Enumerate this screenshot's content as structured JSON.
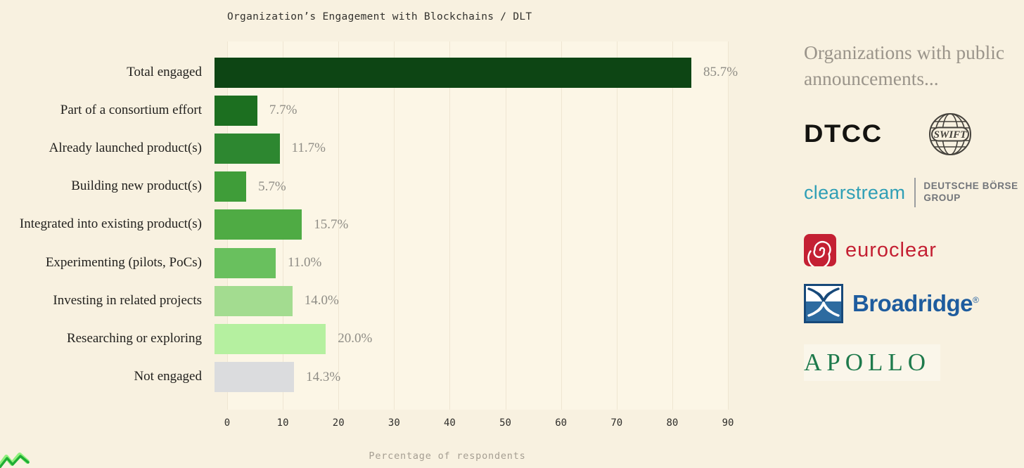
{
  "chart_data": {
    "type": "bar",
    "orientation": "horizontal",
    "title": "Organization’s Engagement with Blockchains / DLT",
    "xlabel": "Percentage of respondents",
    "xlim": [
      0,
      90
    ],
    "xticks": [
      0,
      10,
      20,
      30,
      40,
      50,
      60,
      70,
      80,
      90
    ],
    "grid": "vertical",
    "categories": [
      "Total engaged",
      "Part of a consortium effort",
      "Already launched product(s)",
      "Building new product(s)",
      "Integrated into existing product(s)",
      "Experimenting (pilots, PoCs)",
      "Investing in related projects",
      "Researching or exploring",
      "Not engaged"
    ],
    "values": [
      85.7,
      7.7,
      11.7,
      5.7,
      15.7,
      11.0,
      14.0,
      20.0,
      14.3
    ],
    "value_labels": [
      "85.7%",
      "7.7%",
      "11.7%",
      "5.7%",
      "15.7%",
      "11.0%",
      "14.0%",
      "20.0%",
      "14.3%"
    ],
    "bar_colors": [
      "#0d4514",
      "#1c6f20",
      "#2d8730",
      "#3f9d39",
      "#4fab44",
      "#69c05e",
      "#a3dc90",
      "#b5f0a0",
      "#dbdcde"
    ]
  },
  "sidebar": {
    "heading": "Organizations with public announcements...",
    "dtcc": "DTCC",
    "swift": "SWIFT",
    "clearstream": "clearstream",
    "deutsche_boerse_line1": "DEUTSCHE BÖRSE",
    "deutsche_boerse_line2": "GROUP",
    "euroclear": "euroclear",
    "broadridge": "Broadridge",
    "broadridge_mark": "®",
    "apollo": "APOLLO"
  },
  "colors": {
    "background": "#f8f1e0",
    "plot_background": "#fcf6e6",
    "gridline": "#efe6d2",
    "category_label": "#22211e",
    "value_label": "#8f8d86",
    "heading": "#9a948a",
    "clearstream_teal": "#2f9fb6",
    "euroclear_red": "#c42033",
    "broadridge_blue": "#1e5c9e",
    "apollo_green": "#1e7a4c"
  }
}
